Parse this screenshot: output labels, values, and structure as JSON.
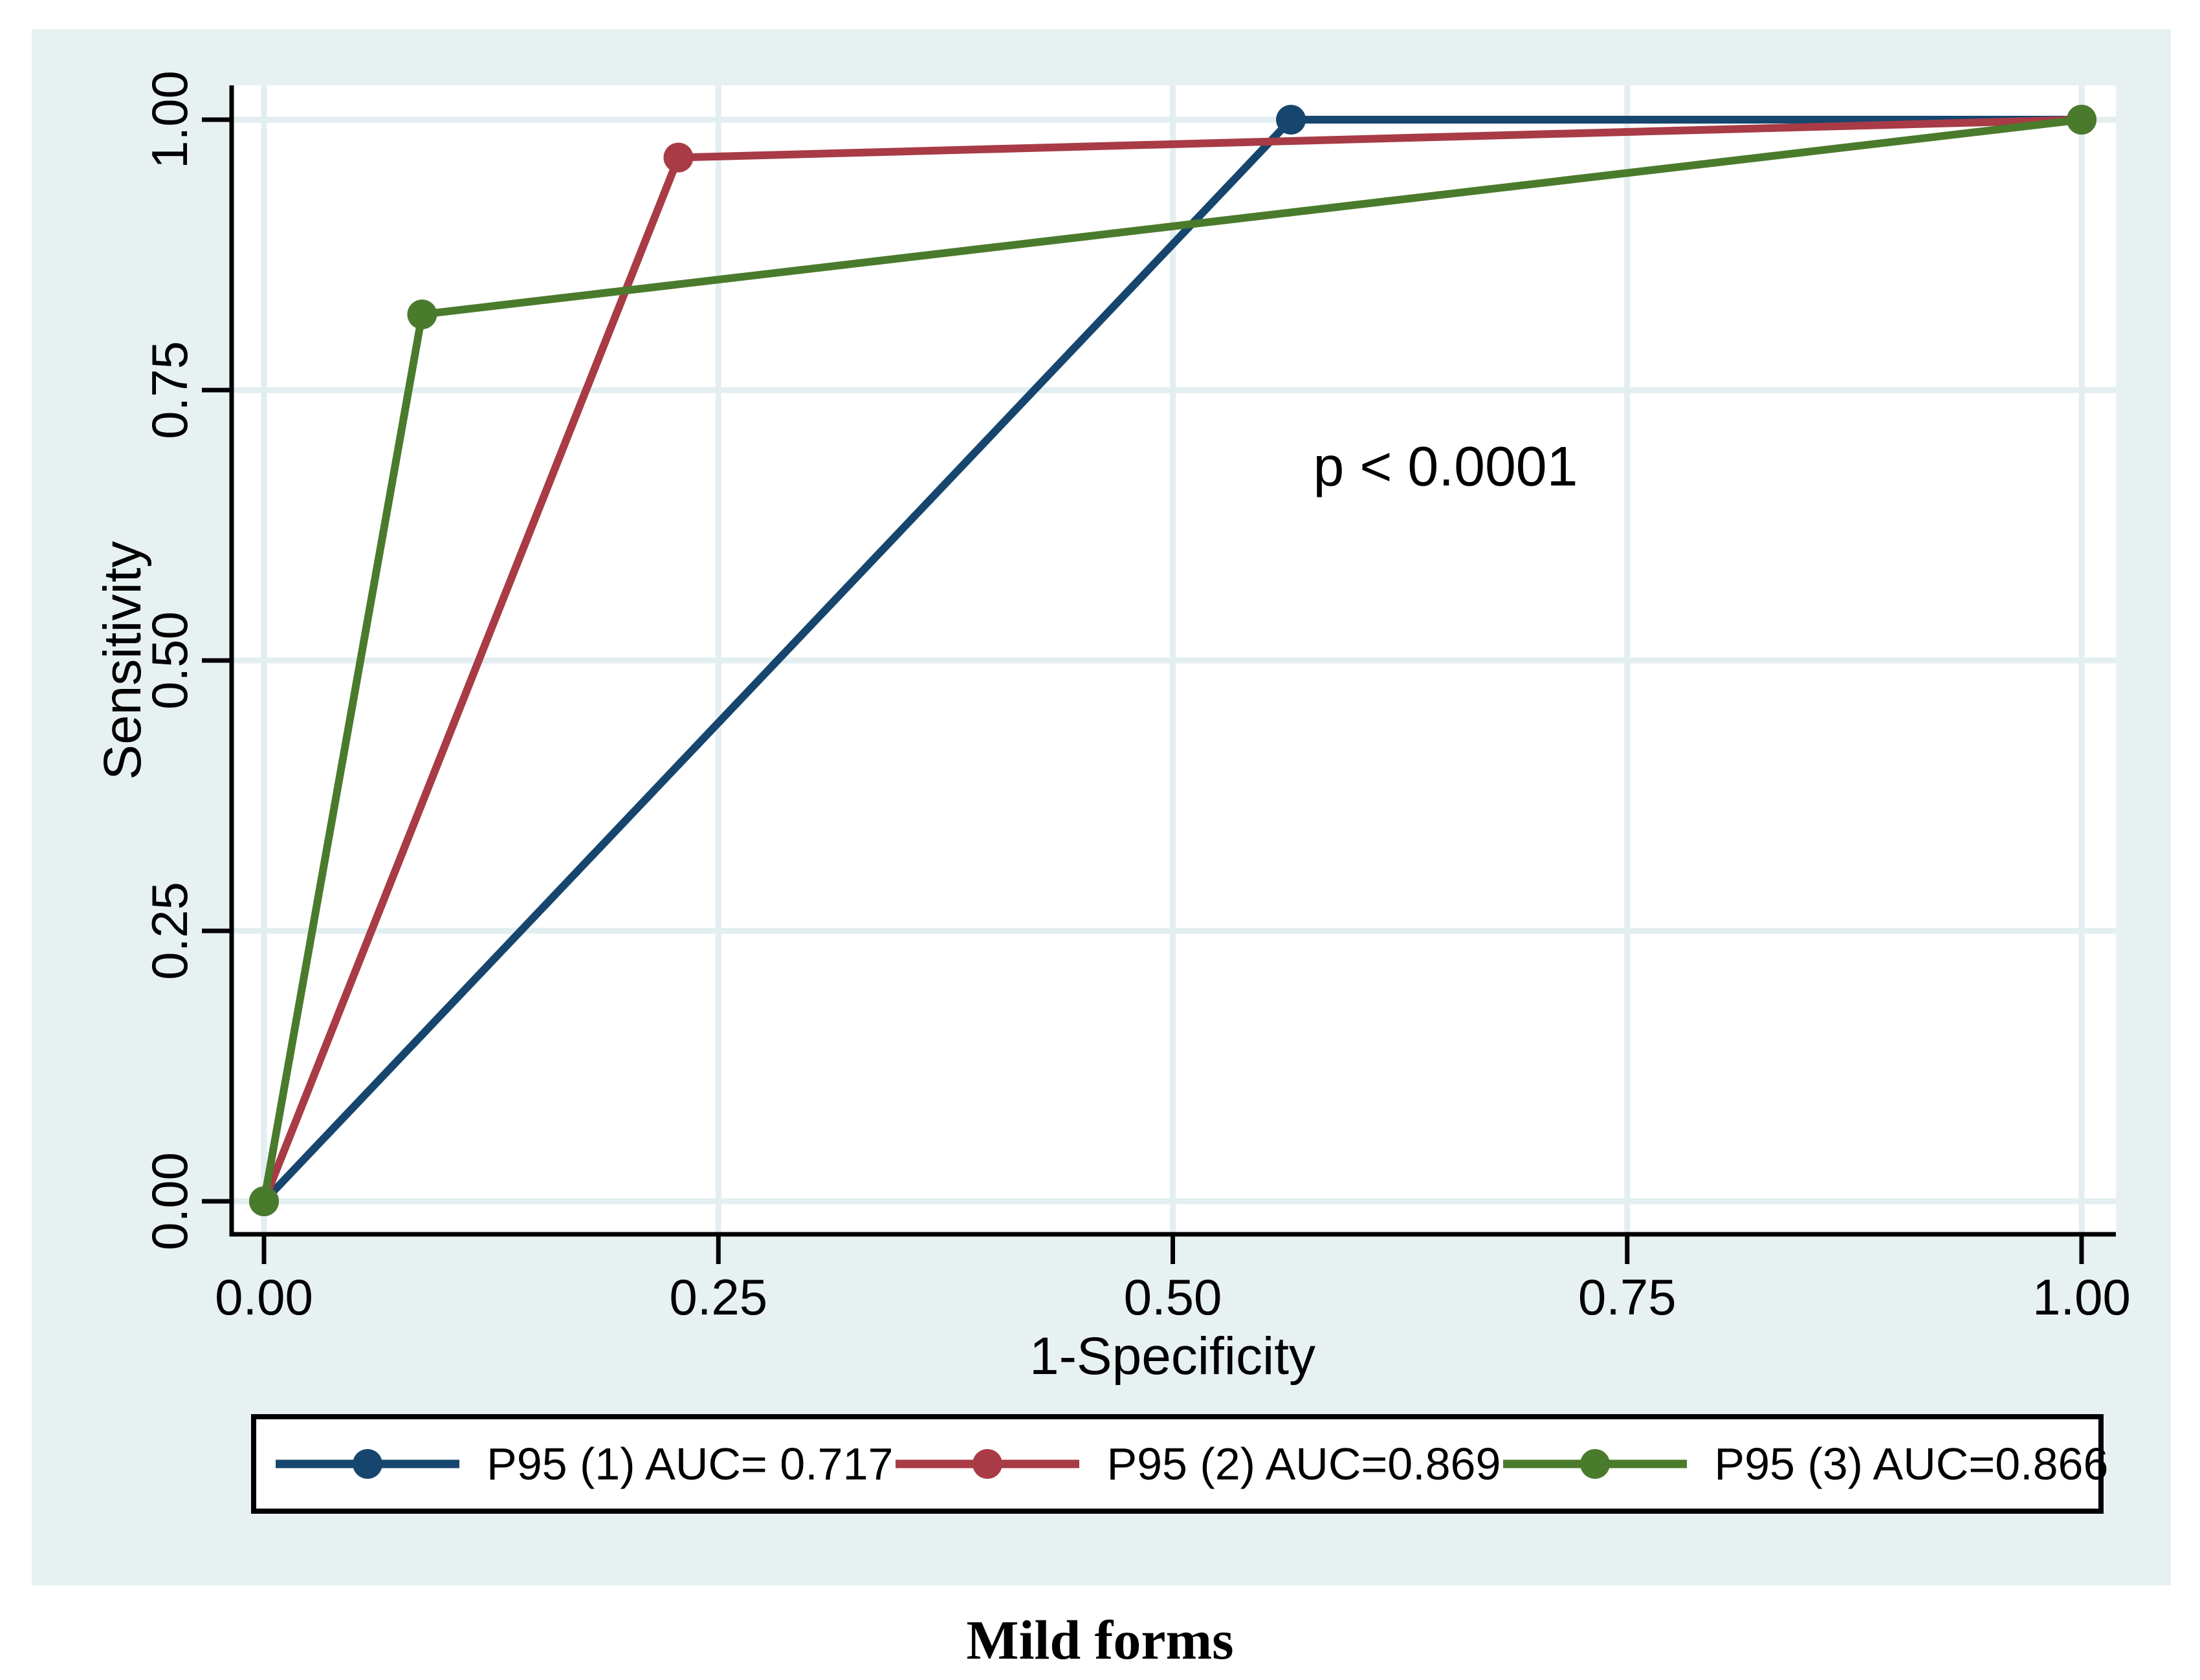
{
  "figure": {
    "caption": "Mild forms",
    "annotation_text": "p < 0.0001"
  },
  "colors": {
    "background": "#ffffff",
    "figure_background": "#e7f1f2",
    "plot_background": "#ffffff",
    "gridline": "#e2eef0",
    "axis": "#000000",
    "legend_border": "#000000",
    "navy": "#16466e",
    "maroon": "#a83b46",
    "forest_green": "#4a7b2c"
  },
  "chart_data": {
    "type": "line",
    "subtype": "roc-curve",
    "title": "Mild forms",
    "xlabel": "1-Specificity",
    "ylabel": "Sensitivity",
    "xlim": [
      0,
      1
    ],
    "ylim": [
      0,
      1
    ],
    "grid": true,
    "legend_position": "bottom",
    "x_ticks": [
      {
        "v": 0.0,
        "label": "0.00"
      },
      {
        "v": 0.25,
        "label": "0.25"
      },
      {
        "v": 0.5,
        "label": "0.50"
      },
      {
        "v": 0.75,
        "label": "0.75"
      },
      {
        "v": 1.0,
        "label": "1.00"
      }
    ],
    "y_ticks": [
      {
        "v": 0.0,
        "label": "0.00"
      },
      {
        "v": 0.25,
        "label": "0.25"
      },
      {
        "v": 0.5,
        "label": "0.50"
      },
      {
        "v": 0.75,
        "label": "0.75"
      },
      {
        "v": 1.0,
        "label": "1.00"
      }
    ],
    "annotation": {
      "text": "p < 0.0001",
      "x": 0.65,
      "y": 0.68
    },
    "series": [
      {
        "name": "P95 (1) AUC= 0.717",
        "color": "#16466e",
        "auc": 0.717,
        "points": [
          [
            0,
            0
          ],
          [
            0.565,
            1.0
          ],
          [
            1,
            1
          ]
        ]
      },
      {
        "name": "P95 (2) AUC=0.869",
        "color": "#a83b46",
        "auc": 0.869,
        "points": [
          [
            0,
            0
          ],
          [
            0.228,
            0.965
          ],
          [
            1,
            1
          ]
        ]
      },
      {
        "name": "P95 (3) AUC=0.866",
        "color": "#4a7b2c",
        "auc": 0.866,
        "points": [
          [
            0,
            0
          ],
          [
            0.087,
            0.82
          ],
          [
            1,
            1
          ]
        ]
      }
    ]
  }
}
